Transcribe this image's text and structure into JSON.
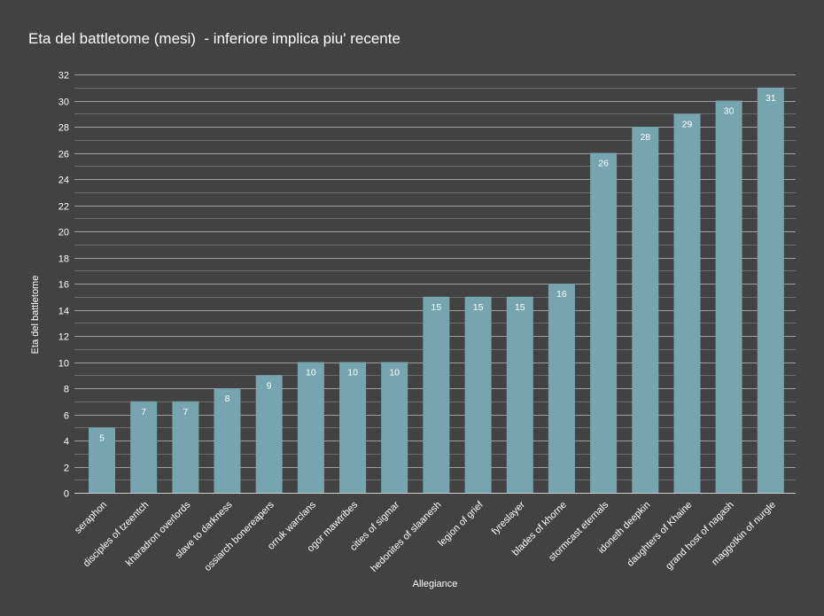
{
  "chart_data": {
    "type": "bar",
    "title": "Eta del battletome (mesi)  - inferiore implica piu' recente",
    "xlabel": "Allegiance",
    "ylabel": "Eta del battletome",
    "ylim": [
      0,
      32
    ],
    "ytick_step": 2,
    "grid": true,
    "minor_grid": true,
    "legend": "none",
    "colors": {
      "background": "#424242",
      "bar": "#76a5af",
      "grid": "#9e9e9e",
      "minor_grid": "#6b6b6b",
      "text": "#ffffff"
    },
    "categories": [
      "seraphon",
      "disciples of tzeentch",
      "kharadron overlords",
      "slave to darkness",
      "ossiarch bonereapers",
      "orruk warclans",
      "ogor mawtribes",
      "cities of sigmar",
      "hedonites of slaanesh",
      "legion of grief",
      "fyreslayer",
      "blades of khorne",
      "stormcast eternals",
      "idoneth deepkin",
      "daughters of Khaine",
      "grand host of nagash",
      "maggotkin of nurgle"
    ],
    "values": [
      5,
      7,
      7,
      8,
      9,
      10,
      10,
      10,
      15,
      15,
      15,
      16,
      26,
      28,
      29,
      30,
      31
    ]
  }
}
